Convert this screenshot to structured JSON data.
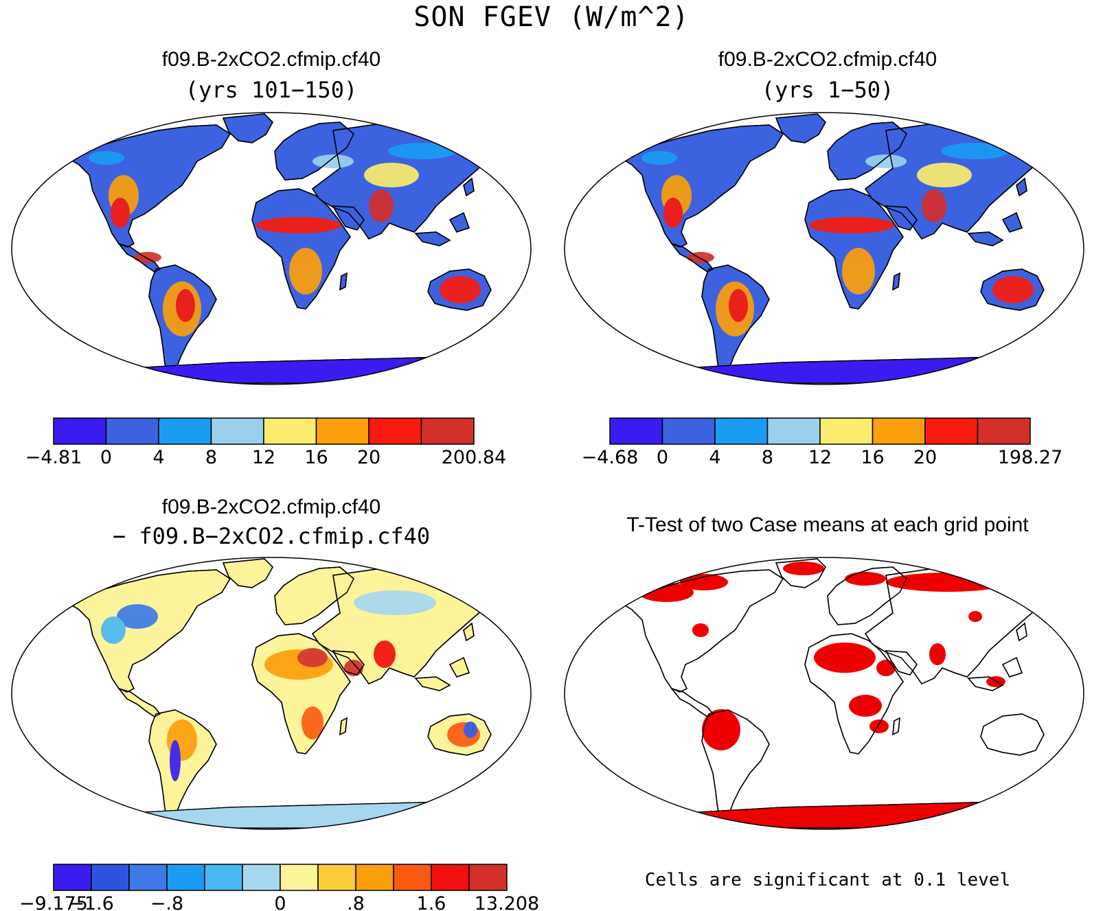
{
  "title": "SON FGEV (W/m^2)",
  "panels": [
    {
      "id": "case1",
      "title": "f09.B-2xCO2.cfmip.cf40",
      "subtitle": "(yrs 101−150)",
      "colorbar": {
        "colors": [
          "#3a1cf0",
          "#3d62e0",
          "#1a9cf2",
          "#9ad0ee",
          "#fbec6e",
          "#fb9f0c",
          "#f91b0d",
          "#d3302b"
        ],
        "labels": [
          "−4.81",
          "0",
          "4",
          "8",
          "12",
          "16",
          "20",
          "",
          "200.84"
        ]
      }
    },
    {
      "id": "case2",
      "title": "f09.B-2xCO2.cfmip.cf40",
      "subtitle": "(yrs 1−50)",
      "colorbar": {
        "colors": [
          "#3a1cf0",
          "#3d62e0",
          "#1a9cf2",
          "#9ad0ee",
          "#fbec6e",
          "#fb9f0c",
          "#f91b0d",
          "#d3302b"
        ],
        "labels": [
          "−4.68",
          "0",
          "4",
          "8",
          "12",
          "16",
          "20",
          "",
          "198.27"
        ]
      }
    },
    {
      "id": "diff",
      "title": "f09.B-2xCO2.cfmip.cf40",
      "subtitle": "− f09.B−2xCO2.cfmip.cf40",
      "colorbar": {
        "colors": [
          "#3a1cf0",
          "#2f55e0",
          "#3d7ae6",
          "#1a9cf2",
          "#4ab8f2",
          "#a7d6ef",
          "#fcf49a",
          "#fbcd3a",
          "#fb9f0c",
          "#fb5a10",
          "#f21010",
          "#d3302b"
        ],
        "labels": [
          "−9.175",
          "−1.6",
          "",
          "−.8",
          "",
          "",
          "0",
          "",
          ".8",
          "",
          "1.6",
          "",
          "13.208"
        ]
      }
    },
    {
      "id": "ttest",
      "title": "T-Test of two Case means at each grid point",
      "footnote": "Cells are significant at 0.1 level",
      "sig_color": "#ee0000"
    }
  ]
}
